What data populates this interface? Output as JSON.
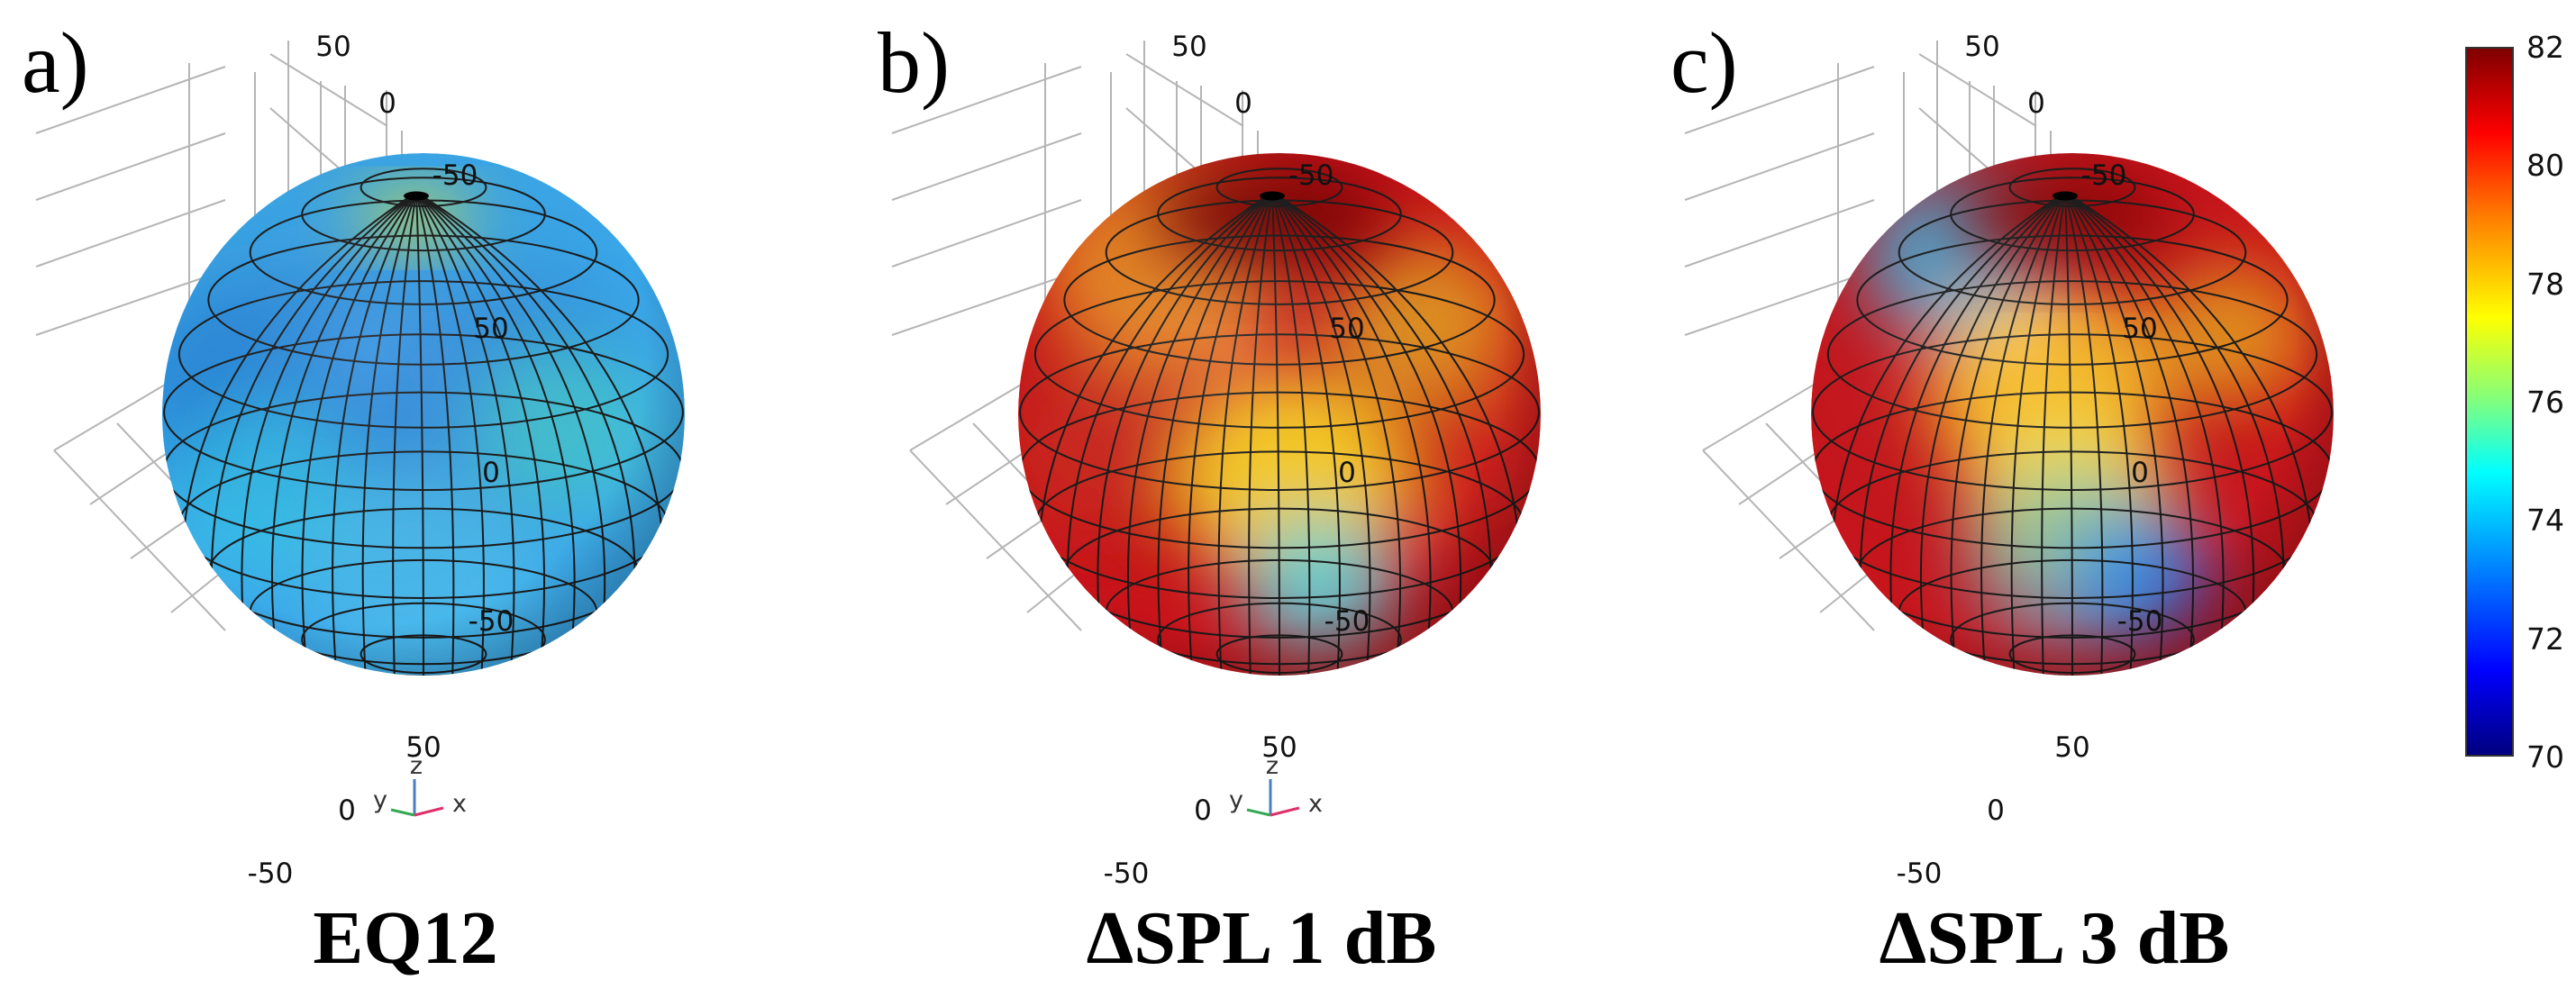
{
  "panels": [
    {
      "letter": "a)",
      "caption": "EQ12",
      "scheme": "blue",
      "ticks_back": [
        "50",
        "0",
        "-50"
      ],
      "ticks_right": [
        "50",
        "0",
        "-50"
      ],
      "ticks_front": [
        "50",
        "0",
        "-50"
      ],
      "triad": {
        "z": "z",
        "y": "y",
        "x": "x"
      }
    },
    {
      "letter": "b)",
      "caption": "ΔSPL 1 dB",
      "scheme": "red",
      "ticks_back": [
        "50",
        "0",
        "-50"
      ],
      "ticks_right": [
        "50",
        "0",
        "-50"
      ],
      "ticks_front": [
        "50",
        "0",
        "-50"
      ],
      "triad": {
        "z": "z",
        "y": "y",
        "x": "x"
      }
    },
    {
      "letter": "c)",
      "caption": "ΔSPL 3 dB",
      "scheme": "mixed",
      "ticks_back": [
        "50",
        "0",
        "-50"
      ],
      "ticks_right": [
        "50",
        "0",
        "-50"
      ],
      "ticks_front": [
        "50",
        "0",
        "-50"
      ],
      "triad": null
    }
  ],
  "colorbar": {
    "min": 70,
    "max": 82,
    "labels": [
      "82",
      "80",
      "78",
      "76",
      "74",
      "72",
      "70"
    ]
  },
  "colors": {
    "grid": "#b5b5b5",
    "mesh": "#1a1a1a",
    "axis_x": "#e0306a",
    "axis_y": "#34a853",
    "axis_z": "#4a7fc0"
  }
}
